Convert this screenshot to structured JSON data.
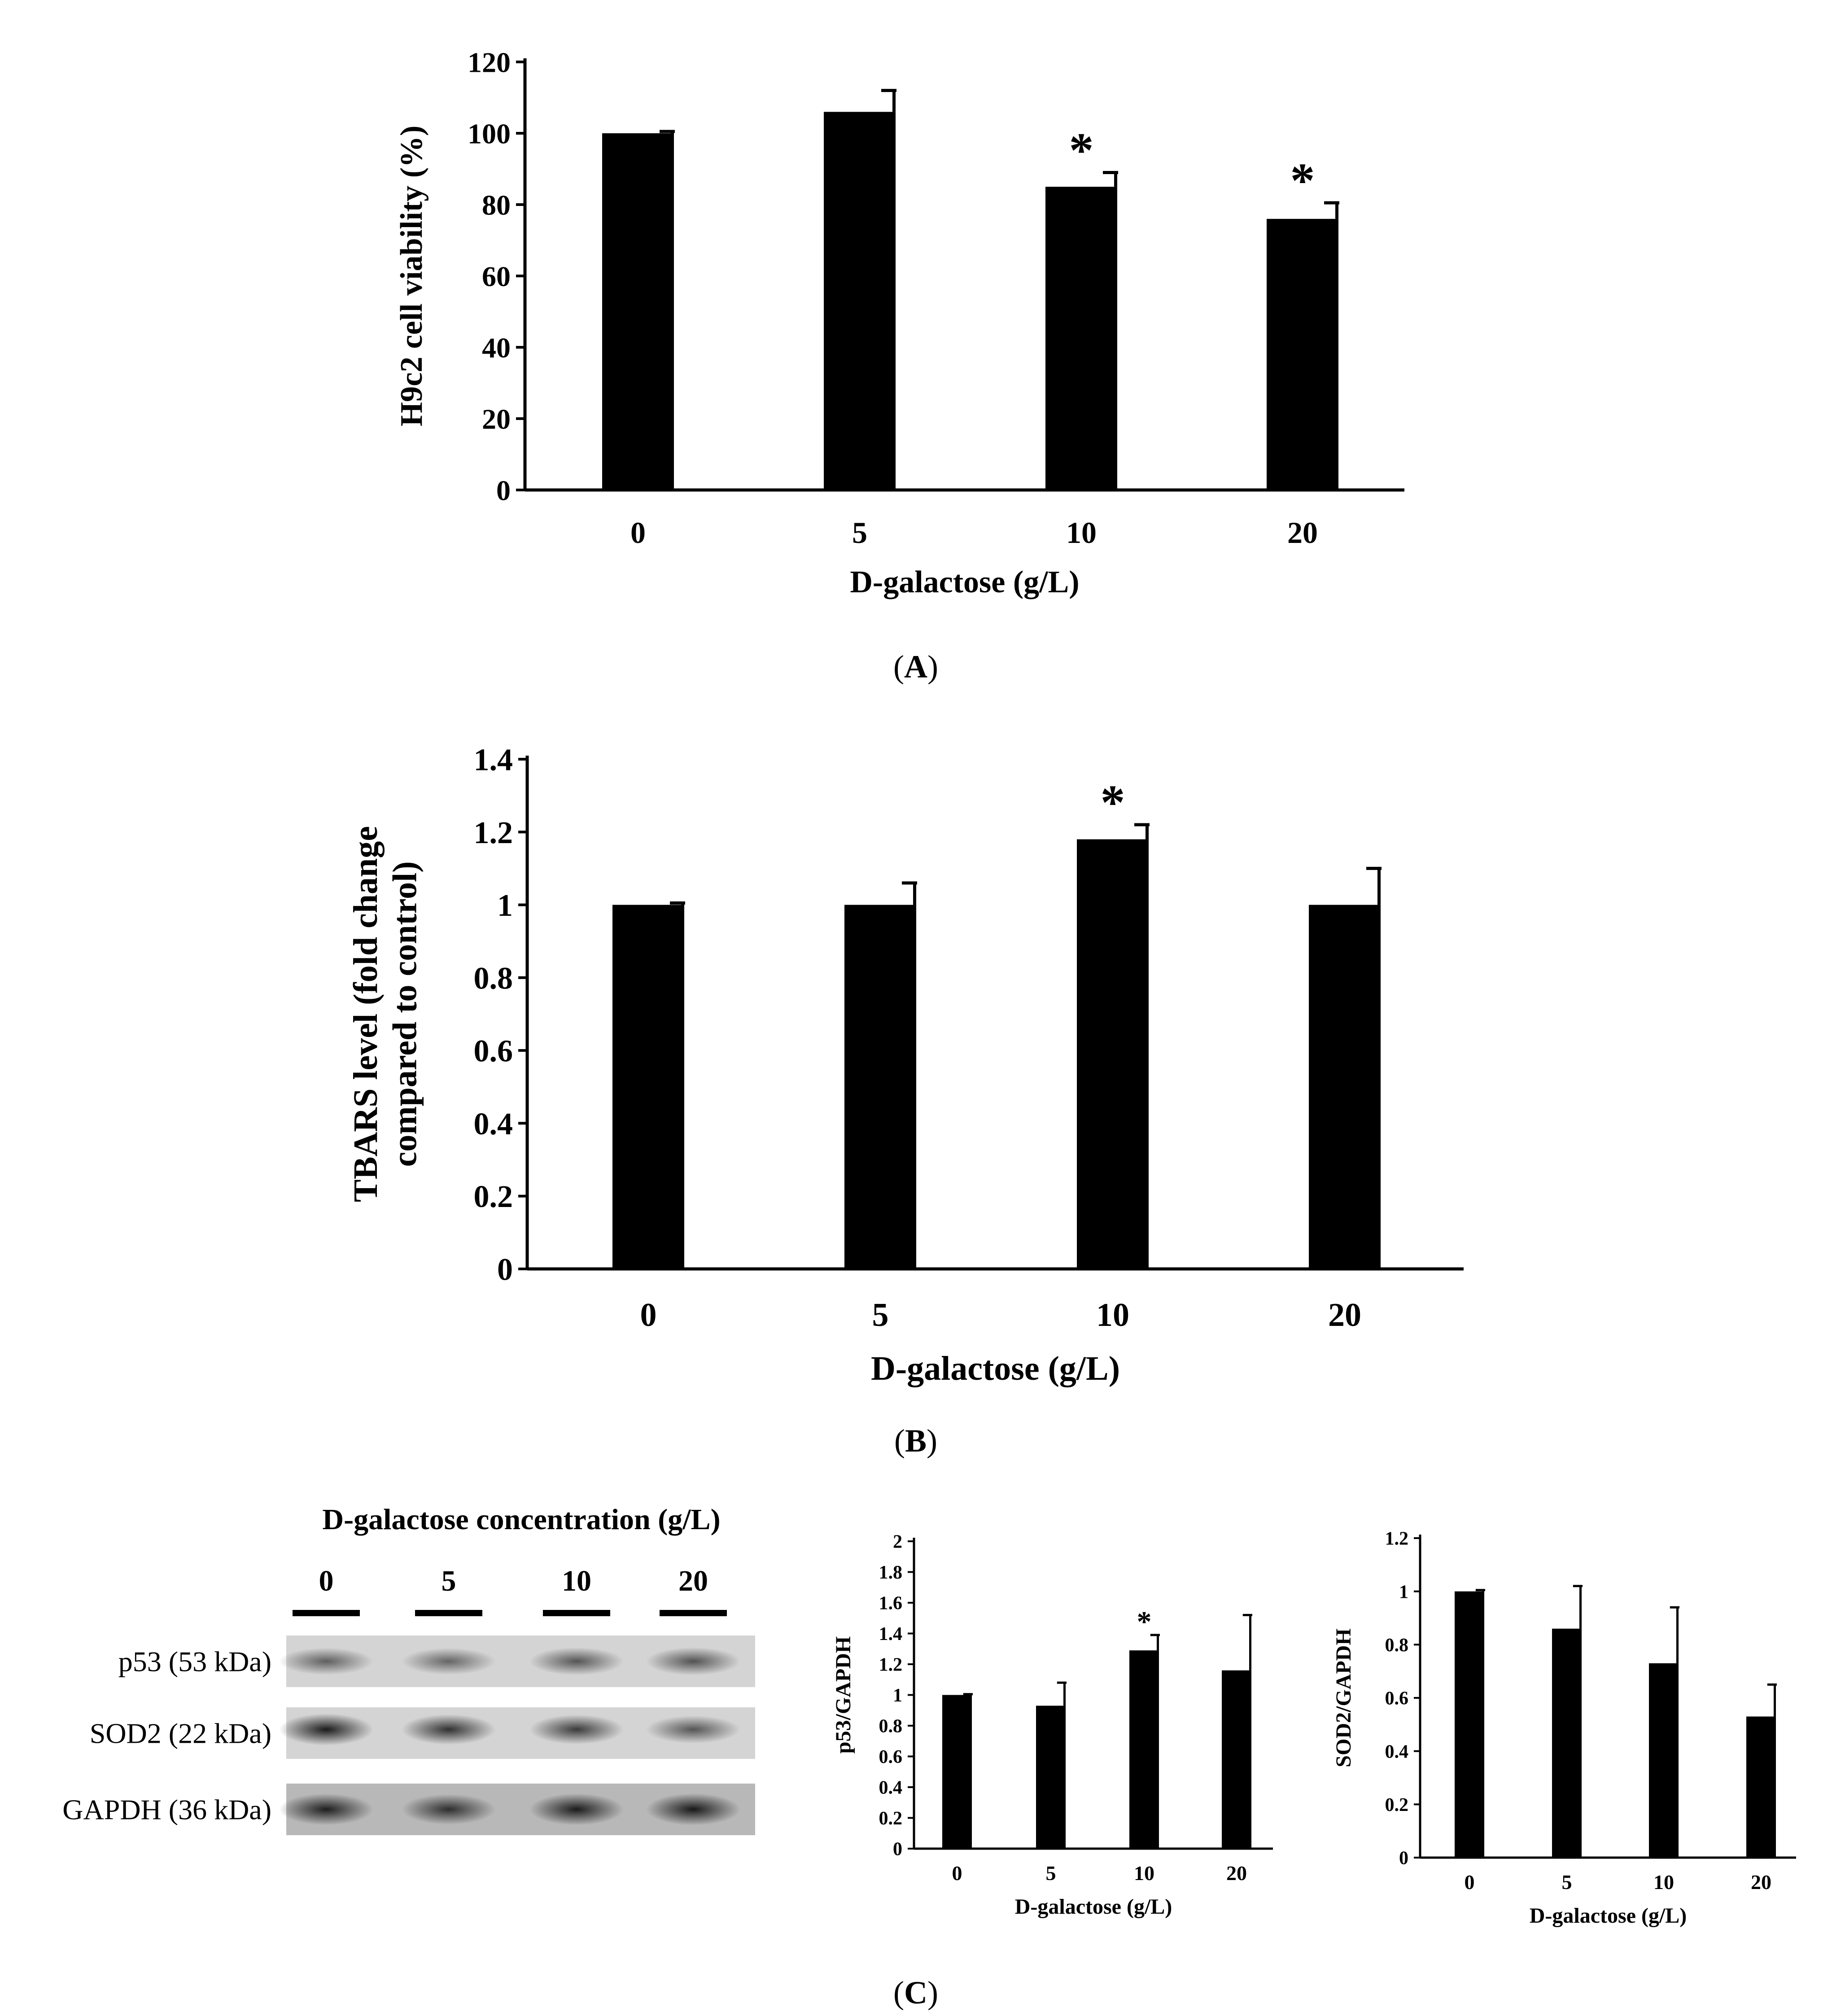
{
  "panels": {
    "A": {
      "caption_letter": "A"
    },
    "B": {
      "caption_letter": "B"
    },
    "C": {
      "caption_letter": "C"
    }
  },
  "blot": {
    "title": "D-galactose concentration (g/L)",
    "lanes": [
      "0",
      "5",
      "10",
      "20"
    ],
    "rows": [
      {
        "label": "p53 (53 kDa)",
        "intensity": [
          0.42,
          0.38,
          0.5,
          0.52
        ]
      },
      {
        "label": "SOD2 (22 kDa)",
        "intensity": [
          0.95,
          0.78,
          0.7,
          0.5
        ]
      },
      {
        "label": "GAPDH (36 kDa)",
        "intensity": [
          0.92,
          0.8,
          0.95,
          0.97
        ]
      }
    ]
  },
  "chart_data": [
    {
      "id": "A",
      "type": "bar",
      "categories": [
        "0",
        "5",
        "10",
        "20"
      ],
      "values": [
        100,
        106,
        85,
        76
      ],
      "errors": [
        0.5,
        6,
        4,
        4.5
      ],
      "significance": [
        "",
        "",
        "*",
        "*"
      ],
      "xlabel": "D-galactose (g/L)",
      "ylabel": "H9c2 cell viability (%)",
      "ylim": [
        0,
        120
      ],
      "yticks": [
        "0",
        "20",
        "40",
        "60",
        "80",
        "100",
        "120"
      ],
      "grid": false
    },
    {
      "id": "B",
      "type": "bar",
      "categories": [
        "0",
        "5",
        "10",
        "20"
      ],
      "values": [
        1.0,
        1.0,
        1.18,
        1.0
      ],
      "errors": [
        0.005,
        0.06,
        0.04,
        0.1
      ],
      "significance": [
        "",
        "",
        "*",
        ""
      ],
      "xlabel": "D-galactose (g/L)",
      "ylabel_lines": [
        "TBARS level (fold change",
        "compared to control)"
      ],
      "ylim": [
        0,
        1.4
      ],
      "yticks": [
        "0",
        "0.2",
        "0.4",
        "0.6",
        "0.8",
        "1",
        "1.2",
        "1.4"
      ],
      "grid": false
    },
    {
      "id": "C1",
      "type": "bar",
      "categories": [
        "0",
        "5",
        "10",
        "20"
      ],
      "values": [
        1.0,
        0.93,
        1.29,
        1.16
      ],
      "errors": [
        0.005,
        0.15,
        0.1,
        0.36
      ],
      "significance": [
        "",
        "",
        "*",
        ""
      ],
      "xlabel": "D-galactose (g/L)",
      "ylabel": "p53/GAPDH",
      "ylim": [
        0,
        2
      ],
      "yticks": [
        "0",
        "0.2",
        "0.4",
        "0.6",
        "0.8",
        "1",
        "1.2",
        "1.4",
        "1.6",
        "1.8",
        "2"
      ],
      "grid": false
    },
    {
      "id": "C2",
      "type": "bar",
      "categories": [
        "0",
        "5",
        "10",
        "20"
      ],
      "values": [
        1.0,
        0.86,
        0.73,
        0.53
      ],
      "errors": [
        0.005,
        0.16,
        0.21,
        0.12
      ],
      "significance": [
        "",
        "",
        "",
        ""
      ],
      "xlabel": "D-galactose (g/L)",
      "ylabel": "SOD2/GAPDH",
      "ylim": [
        0,
        1.2
      ],
      "yticks": [
        "0",
        "0.2",
        "0.4",
        "0.6",
        "0.8",
        "1",
        "1.2"
      ],
      "grid": false
    }
  ]
}
